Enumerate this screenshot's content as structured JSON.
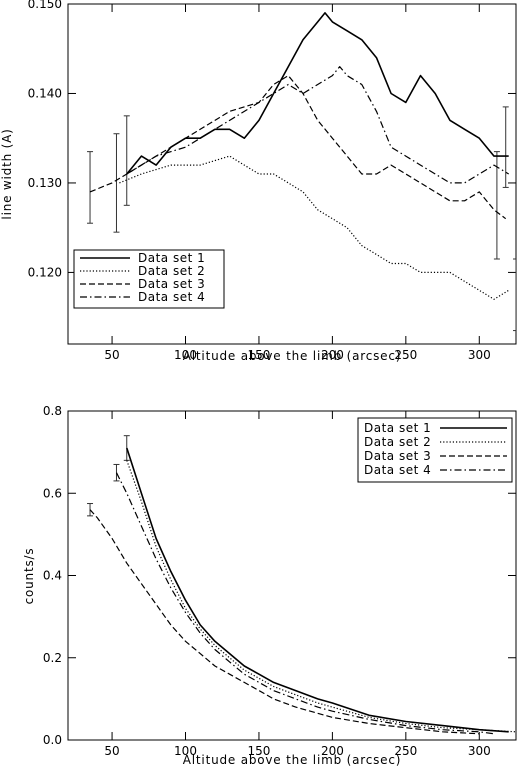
{
  "chart_data": [
    {
      "type": "line",
      "xlabel": "Altitude above the limb (arcsec)",
      "ylabel": "line width (A)",
      "xlim": [
        20,
        325
      ],
      "ylim": [
        0.112,
        0.15
      ],
      "x_ticks": [
        50,
        100,
        150,
        200,
        250,
        300
      ],
      "y_ticks": [
        0.12,
        0.13,
        0.14,
        0.15
      ],
      "y_tick_labels": [
        "0.120",
        "0.130",
        "0.140",
        "0.150"
      ],
      "legend_position": "bottom-left",
      "series": [
        {
          "name": "Data set 1",
          "dash": "solid",
          "x": [
            60,
            70,
            80,
            90,
            100,
            110,
            120,
            130,
            140,
            150,
            160,
            170,
            180,
            190,
            195,
            200,
            210,
            220,
            230,
            240,
            250,
            260,
            270,
            280,
            290,
            300,
            310,
            320
          ],
          "y": [
            0.131,
            0.133,
            0.132,
            0.134,
            0.135,
            0.135,
            0.136,
            0.136,
            0.135,
            0.137,
            0.14,
            0.143,
            0.146,
            0.148,
            0.149,
            0.148,
            0.147,
            0.146,
            0.144,
            0.14,
            0.139,
            0.142,
            0.14,
            0.137,
            0.136,
            0.135,
            0.133,
            0.133
          ]
        },
        {
          "name": "Data set 2",
          "dash": "dotted",
          "x": [
            55,
            70,
            90,
            110,
            130,
            140,
            150,
            160,
            170,
            180,
            190,
            200,
            210,
            220,
            230,
            240,
            250,
            260,
            270,
            280,
            290,
            300,
            310,
            320
          ],
          "y": [
            0.13,
            0.131,
            0.132,
            0.132,
            0.133,
            0.132,
            0.131,
            0.131,
            0.13,
            0.129,
            0.127,
            0.126,
            0.125,
            0.123,
            0.122,
            0.121,
            0.121,
            0.12,
            0.12,
            0.12,
            0.119,
            0.118,
            0.117,
            0.118
          ]
        },
        {
          "name": "Data set 3",
          "dash": "dashed",
          "x": [
            35,
            50,
            70,
            90,
            110,
            130,
            150,
            160,
            170,
            180,
            190,
            200,
            210,
            220,
            230,
            240,
            250,
            260,
            270,
            280,
            290,
            300,
            310,
            318
          ],
          "y": [
            0.129,
            0.13,
            0.132,
            0.134,
            0.136,
            0.138,
            0.139,
            0.141,
            0.142,
            0.14,
            0.137,
            0.135,
            0.133,
            0.131,
            0.131,
            0.132,
            0.131,
            0.13,
            0.129,
            0.128,
            0.128,
            0.129,
            0.127,
            0.126
          ]
        },
        {
          "name": "Data set 4",
          "dash": "dashdot",
          "x": [
            60,
            80,
            100,
            120,
            140,
            160,
            170,
            180,
            190,
            200,
            205,
            210,
            220,
            230,
            240,
            250,
            260,
            270,
            280,
            290,
            300,
            310,
            320
          ],
          "y": [
            0.131,
            0.133,
            0.134,
            0.136,
            0.138,
            0.14,
            0.141,
            0.14,
            0.141,
            0.142,
            0.143,
            0.142,
            0.141,
            0.138,
            0.134,
            0.133,
            0.132,
            0.131,
            0.13,
            0.13,
            0.131,
            0.132,
            0.131
          ]
        }
      ],
      "error_bars": [
        {
          "x": 35,
          "low": 0.1255,
          "high": 0.1335
        },
        {
          "x": 53,
          "low": 0.1245,
          "high": 0.1355
        },
        {
          "x": 60,
          "low": 0.1275,
          "high": 0.1375
        },
        {
          "x": 312,
          "low": 0.1215,
          "high": 0.1335
        },
        {
          "x": 318,
          "low": 0.1295,
          "high": 0.1385
        },
        {
          "x": 325,
          "low": 0.1135,
          "high": 0.1215
        }
      ]
    },
    {
      "type": "line",
      "xlabel": "Altitude above the limb (arcsec)",
      "ylabel": "counts/s",
      "xlim": [
        20,
        325
      ],
      "ylim": [
        0.0,
        0.8
      ],
      "x_ticks": [
        50,
        100,
        150,
        200,
        250,
        300
      ],
      "y_ticks": [
        0.0,
        0.2,
        0.4,
        0.6,
        0.8
      ],
      "y_tick_labels": [
        "0.0",
        "0.2",
        "0.4",
        "0.6",
        "0.8"
      ],
      "legend_position": "top-right",
      "series": [
        {
          "name": "Data set 1",
          "dash": "solid",
          "x": [
            60,
            70,
            80,
            90,
            100,
            110,
            120,
            130,
            140,
            150,
            160,
            175,
            190,
            200,
            225,
            250,
            275,
            300,
            320
          ],
          "y": [
            0.71,
            0.6,
            0.49,
            0.41,
            0.34,
            0.28,
            0.24,
            0.21,
            0.18,
            0.16,
            0.14,
            0.12,
            0.1,
            0.09,
            0.06,
            0.045,
            0.035,
            0.025,
            0.02
          ]
        },
        {
          "name": "Data set 2",
          "dash": "dotted",
          "x": [
            60,
            70,
            80,
            90,
            100,
            110,
            120,
            130,
            140,
            150,
            160,
            175,
            190,
            200,
            225,
            250,
            275,
            300,
            325
          ],
          "y": [
            0.68,
            0.58,
            0.47,
            0.39,
            0.32,
            0.27,
            0.23,
            0.2,
            0.17,
            0.15,
            0.13,
            0.11,
            0.09,
            0.08,
            0.055,
            0.04,
            0.03,
            0.025,
            0.02
          ]
        },
        {
          "name": "Data set 3",
          "dash": "dashed",
          "x": [
            35,
            40,
            50,
            60,
            70,
            80,
            90,
            100,
            110,
            120,
            130,
            140,
            150,
            160,
            175,
            190,
            200,
            225,
            250,
            275,
            300
          ],
          "y": [
            0.56,
            0.54,
            0.49,
            0.43,
            0.38,
            0.33,
            0.28,
            0.24,
            0.21,
            0.18,
            0.16,
            0.14,
            0.12,
            0.1,
            0.08,
            0.065,
            0.055,
            0.04,
            0.03,
            0.02,
            0.015
          ]
        },
        {
          "name": "Data set 4",
          "dash": "dashdot",
          "x": [
            53,
            60,
            70,
            80,
            90,
            100,
            110,
            120,
            130,
            140,
            150,
            160,
            175,
            190,
            200,
            225,
            250,
            275,
            300,
            310
          ],
          "y": [
            0.65,
            0.6,
            0.52,
            0.44,
            0.37,
            0.31,
            0.26,
            0.22,
            0.19,
            0.16,
            0.14,
            0.12,
            0.1,
            0.08,
            0.07,
            0.05,
            0.035,
            0.025,
            0.02,
            0.015
          ]
        }
      ],
      "error_bars": [
        {
          "x": 35,
          "low": 0.545,
          "high": 0.575
        },
        {
          "x": 53,
          "low": 0.63,
          "high": 0.67
        },
        {
          "x": 60,
          "low": 0.68,
          "high": 0.74
        }
      ]
    }
  ]
}
